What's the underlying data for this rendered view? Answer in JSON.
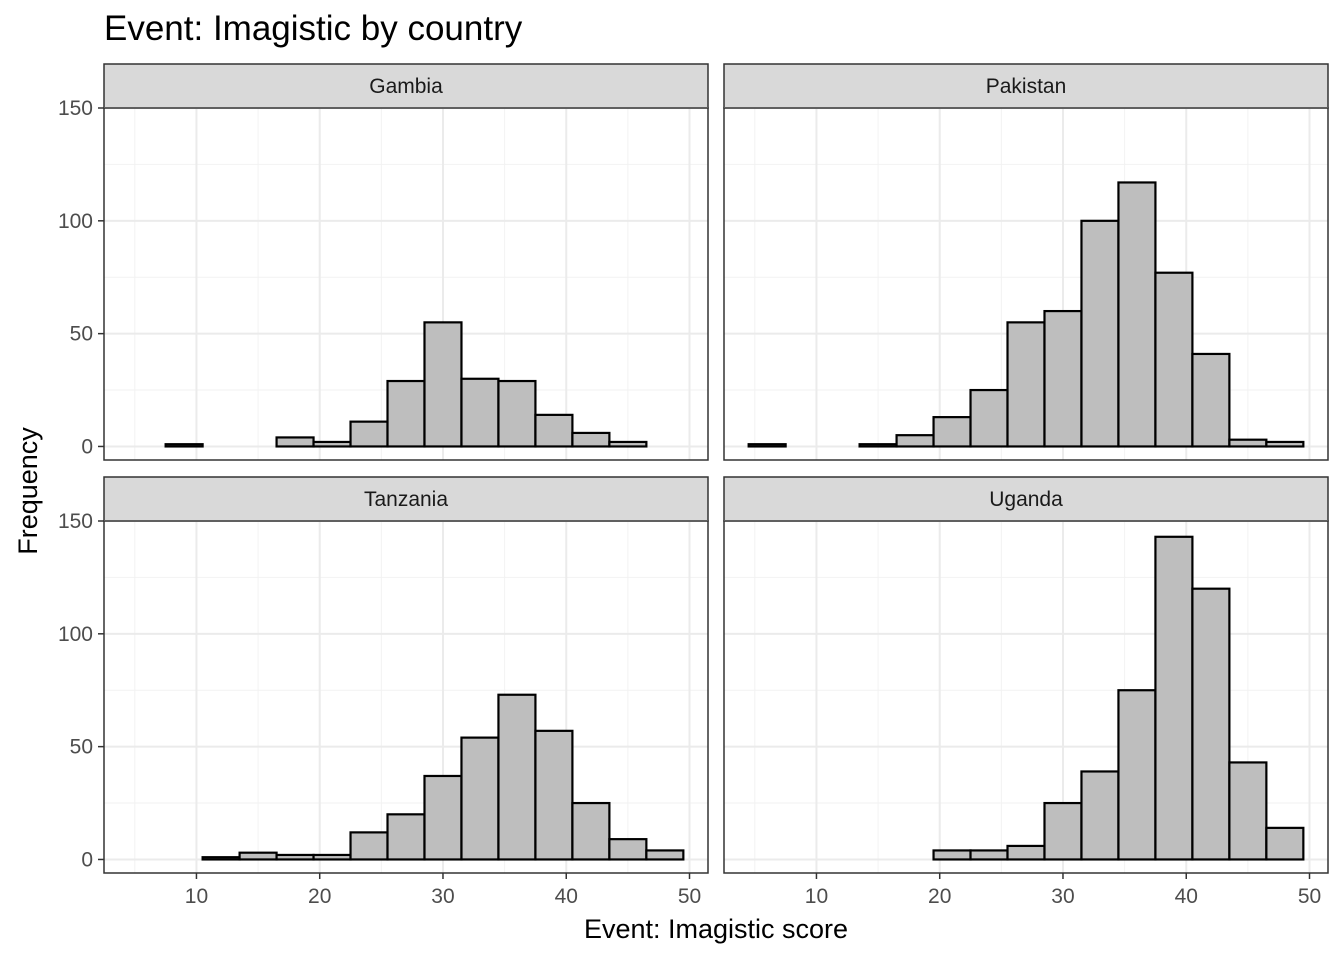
{
  "chart_data": {
    "type": "bar",
    "title": "Event: Imagistic by country",
    "xlabel": "Event: Imagistic score",
    "ylabel": "Frequency",
    "xlim": [
      2.5,
      51.5
    ],
    "ylim": [
      -6,
      150
    ],
    "x_ticks": [
      10,
      20,
      30,
      40,
      50
    ],
    "y_ticks": [
      0,
      50,
      100,
      150
    ],
    "bin_edges": [
      4.5,
      7.5,
      10.5,
      13.5,
      16.5,
      19.5,
      22.5,
      25.5,
      28.5,
      31.5,
      34.5,
      37.5,
      40.5,
      43.5,
      46.5,
      49.5
    ],
    "grid": true,
    "bar_fill": "#bebebe",
    "bar_outline": "#000000",
    "panels": [
      {
        "name": "Gambia",
        "values": [
          0,
          1,
          0,
          0,
          4,
          2,
          11,
          29,
          55,
          30,
          29,
          14,
          6,
          2,
          0
        ]
      },
      {
        "name": "Pakistan",
        "values": [
          1,
          0,
          0,
          1,
          5,
          13,
          25,
          55,
          60,
          100,
          117,
          77,
          41,
          3,
          2
        ]
      },
      {
        "name": "Tanzania",
        "values": [
          0,
          0,
          1,
          3,
          2,
          2,
          12,
          20,
          37,
          54,
          73,
          57,
          25,
          9,
          4
        ]
      },
      {
        "name": "Uganda",
        "values": [
          0,
          0,
          0,
          0,
          0,
          4,
          4,
          6,
          25,
          39,
          75,
          143,
          120,
          43,
          14
        ]
      }
    ]
  }
}
